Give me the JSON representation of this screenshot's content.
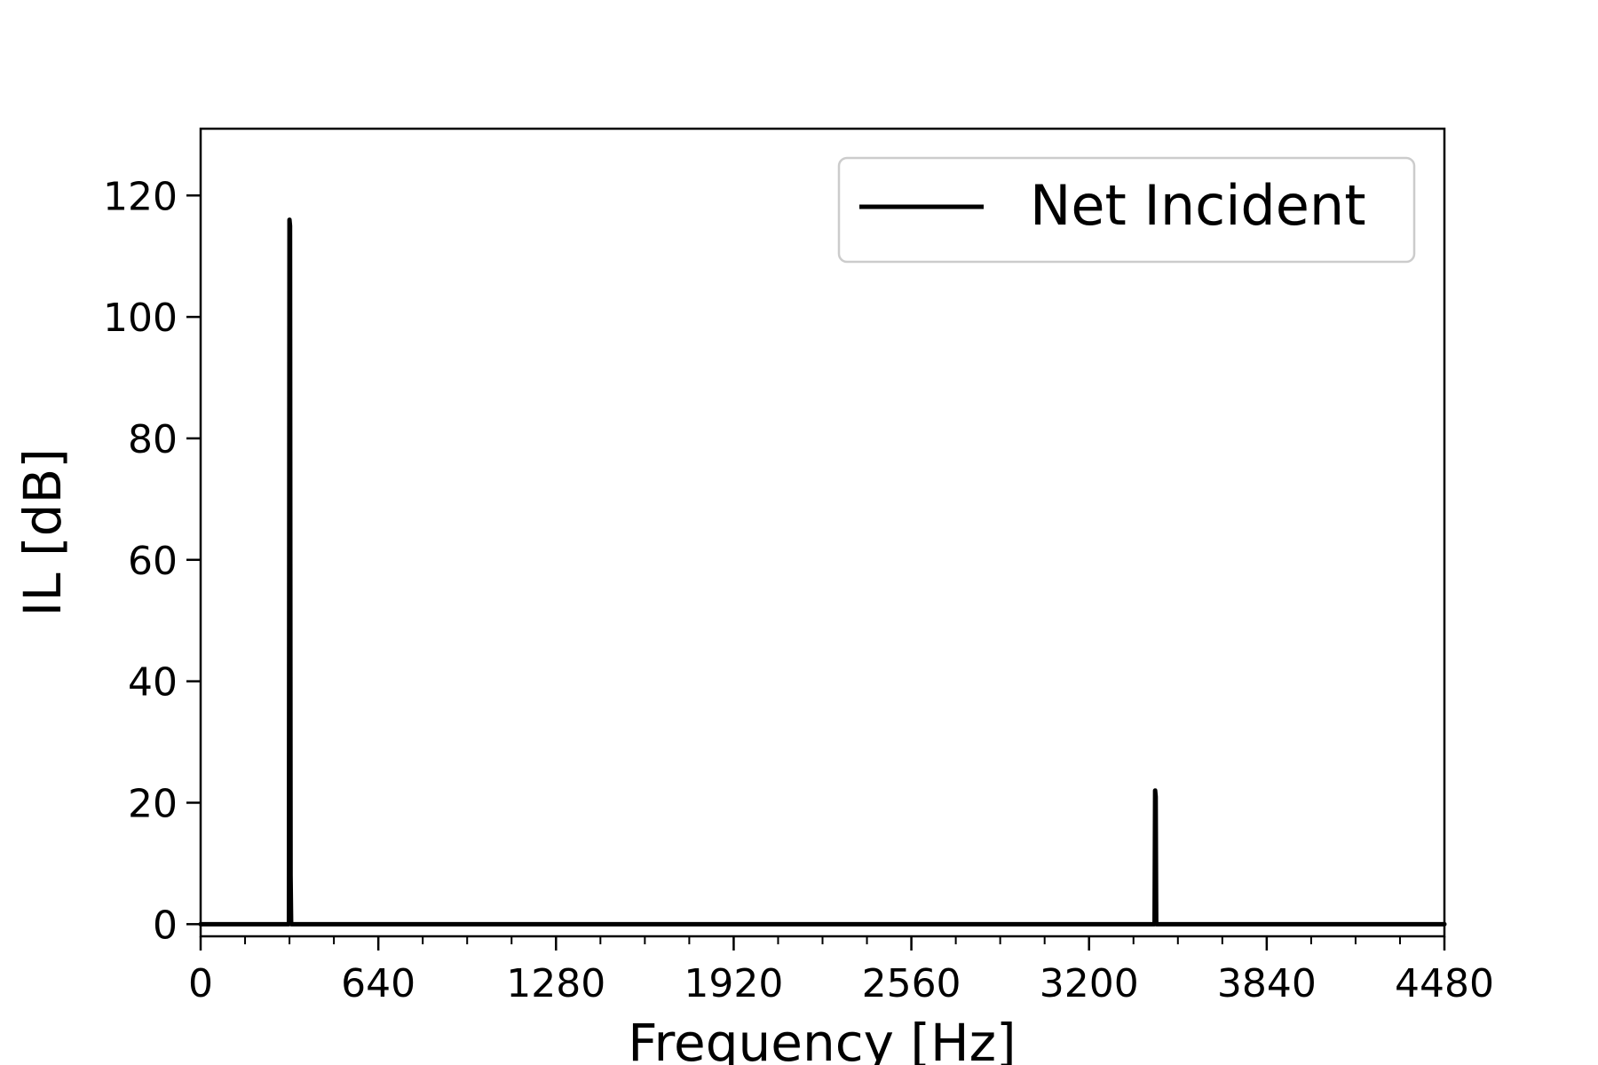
{
  "chart_data": {
    "type": "line",
    "title": "",
    "xlabel": "Frequency [Hz]",
    "ylabel": "IL [dB]",
    "xlim": [
      0,
      4480
    ],
    "ylim": [
      -2,
      131
    ],
    "xticks": [
      0,
      640,
      1280,
      1920,
      2560,
      3200,
      3840,
      4480
    ],
    "xtick_labels": [
      "0",
      "640",
      "1280",
      "1920",
      "2560",
      "3200",
      "3840",
      "4480"
    ],
    "x_minor_tick_step": 160,
    "yticks": [
      0,
      20,
      40,
      60,
      80,
      100,
      120
    ],
    "ytick_labels": [
      "0",
      "20",
      "40",
      "60",
      "80",
      "100",
      "120"
    ],
    "legend_position": "upper right",
    "grid": false,
    "series": [
      {
        "name": "Net Incident",
        "color": "#000000",
        "x": [
          0,
          318,
          320,
          322,
          324,
          326,
          328,
          3436,
          3438,
          3440,
          3442,
          4480
        ],
        "y": [
          0,
          0,
          116,
          115,
          8,
          0,
          0,
          0,
          22,
          21,
          0,
          0
        ]
      }
    ]
  }
}
